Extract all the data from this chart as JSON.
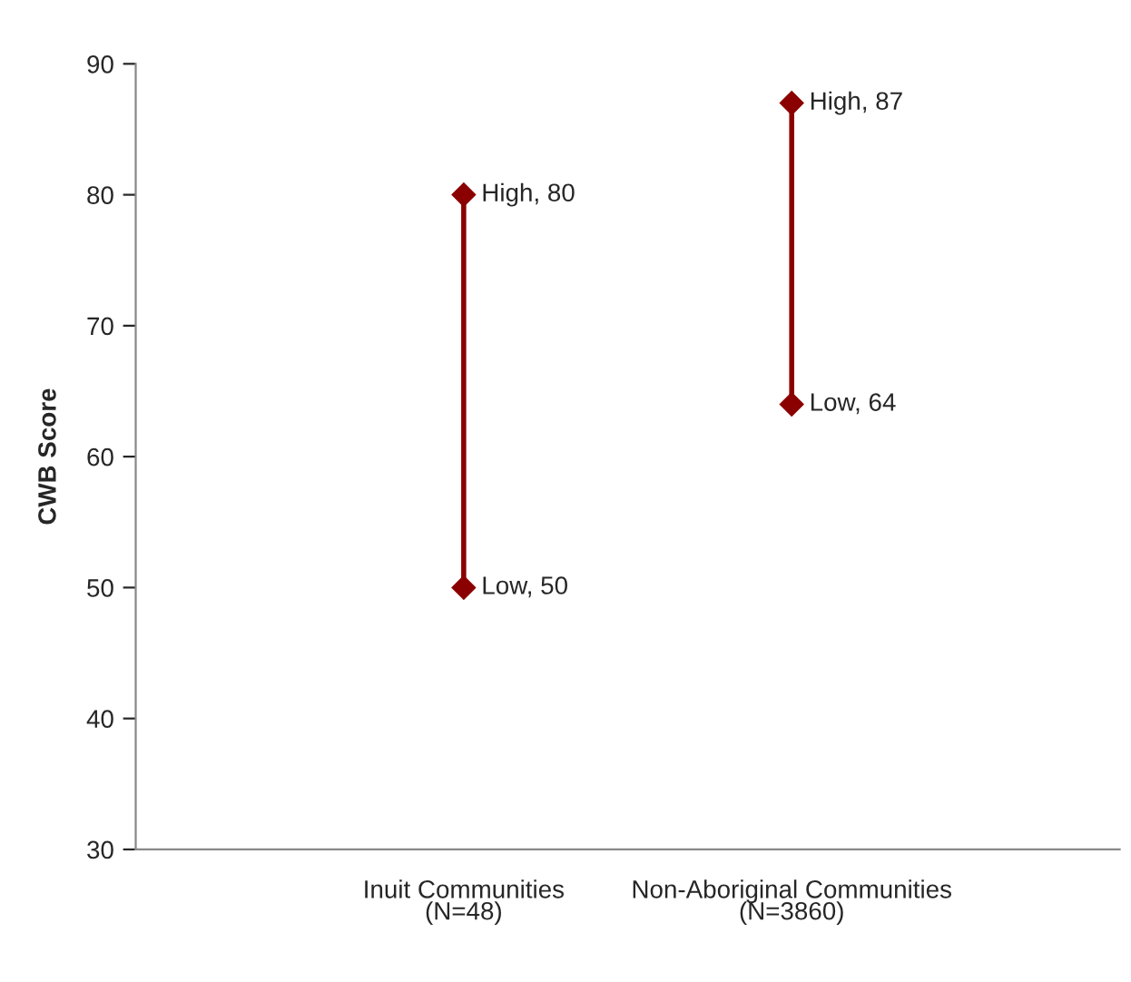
{
  "chart_data": {
    "type": "line",
    "ylabel": "CWB Score",
    "categories": [
      null,
      "Inuit Communities\n(N=48)",
      "Non-Aboriginal Communities\n(N=3860)",
      null
    ],
    "series": [
      {
        "color": "#8b0000",
        "marker": "diamond",
        "x": [
          "Inuit Communities\n(N=48)",
          "Inuit Communities\n(N=48)"
        ],
        "values": [
          50,
          80
        ],
        "value_labels": [
          "Low, 50",
          "High, 80"
        ]
      },
      {
        "color": "#8b0000",
        "marker": "diamond",
        "x": [
          "Non-Aboriginal Communities\n(N=3860)",
          "Non-Aboriginal Communities\n(N=3860)"
        ],
        "values": [
          64,
          87
        ],
        "value_labels": [
          "Low, 64",
          "High, 87"
        ]
      }
    ],
    "ylim": [
      30,
      90
    ],
    "yticks": [
      30,
      40,
      50,
      60,
      70,
      80,
      90
    ],
    "grid": false,
    "legend": false
  }
}
